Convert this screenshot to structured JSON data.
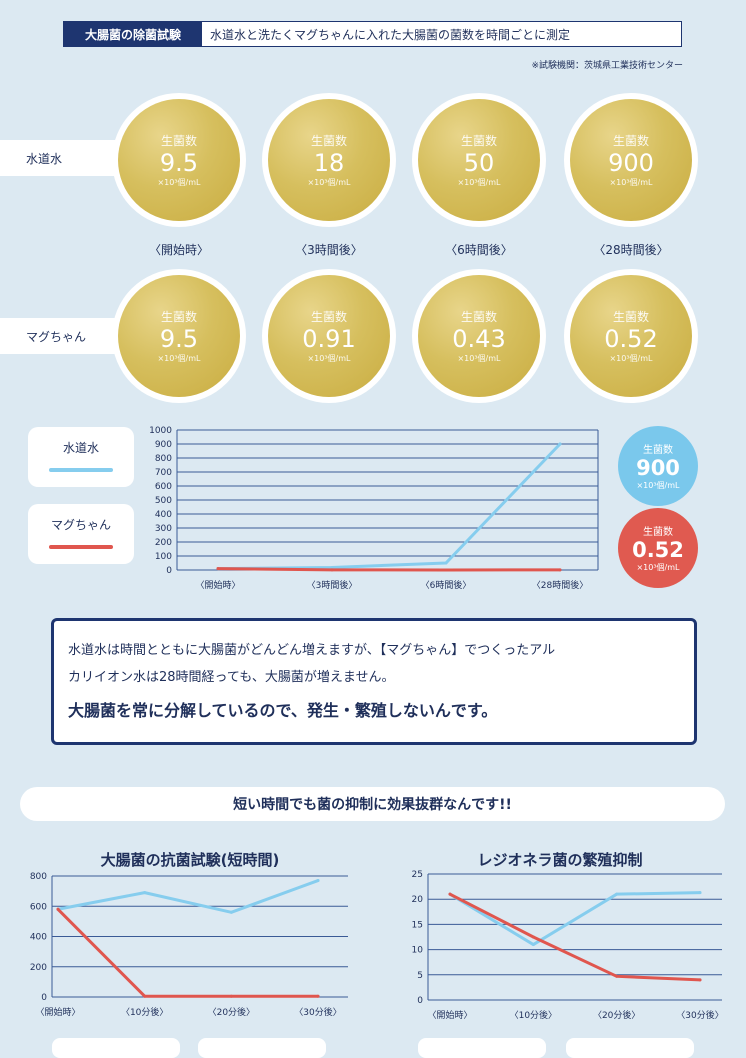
{
  "header": {
    "tag": "大腸菌の除菌試験",
    "title": "水道水と洗たくマグちゃんに入れた大腸菌の菌数を時間ごとに測定",
    "note": "※試験機関：茨城県工業技術センター"
  },
  "circles": {
    "count_label": "生菌数",
    "unit": "×10³個/mL",
    "rows": [
      {
        "label": "水道水",
        "values": [
          "9.5",
          "18",
          "50",
          "900"
        ]
      },
      {
        "label": "マグちゃん",
        "values": [
          "9.5",
          "0.91",
          "0.43",
          "0.52"
        ]
      }
    ],
    "times": [
      "〈開始時〉",
      "〈3時間後〉",
      "〈6時間後〉",
      "〈28時間後〉"
    ]
  },
  "legend": {
    "tap_water": "水道水",
    "maguchan": "マグちゃん"
  },
  "badges": [
    {
      "label": "生菌数",
      "value": "900",
      "unit": "×10³個/mL",
      "color": "#7ac8ec"
    },
    {
      "label": "生菌数",
      "value": "0.52",
      "unit": "×10³個/mL",
      "color": "#e05a50"
    }
  ],
  "colors": {
    "tap_water": "#86cdee",
    "maguchan": "#e0564e",
    "navy": "#1e3570",
    "grid": "#3a5a96",
    "background": "#dce9f2",
    "circle_gold": "#d6bf5e"
  },
  "textbox": {
    "line1": "水道水は時間とともに大腸菌がどんどん増えますが、【マグちゃん】でつくったアル",
    "line2": "カリイオン水は28時間経っても、大腸菌が増えません。",
    "emphasis": "大腸菌を常に分解しているので、発生・繁殖しないんです。"
  },
  "banner": "短い時間でも菌の抑制に効果抜群なんです!!",
  "chart_data": [
    {
      "type": "line",
      "title": "",
      "categories": [
        "〈開始時〉",
        "〈3時間後〉",
        "〈6時間後〉",
        "〈28時間後〉"
      ],
      "series": [
        {
          "name": "水道水",
          "values": [
            9.5,
            18,
            50,
            900
          ],
          "color": "#86cdee"
        },
        {
          "name": "マグちゃん",
          "values": [
            9.5,
            0.91,
            0.43,
            0.52
          ],
          "color": "#e0564e"
        }
      ],
      "yticks": [
        0,
        100,
        200,
        300,
        400,
        500,
        600,
        700,
        800,
        900,
        1000
      ],
      "ylim": [
        0,
        1000
      ],
      "grid": true
    },
    {
      "type": "line",
      "title": "大腸菌の抗菌試験(短時間)",
      "categories": [
        "〈開始時〉",
        "〈10分後〉",
        "〈20分後〉",
        "〈30分後〉"
      ],
      "series": [
        {
          "values": [
            580,
            690,
            560,
            770
          ],
          "color": "#86cdee"
        },
        {
          "values": [
            580,
            5,
            5,
            5
          ],
          "color": "#e0564e"
        }
      ],
      "yticks": [
        0,
        200,
        400,
        600,
        800
      ],
      "ylim": [
        0,
        800
      ],
      "grid": true
    },
    {
      "type": "line",
      "title": "レジオネラ菌の繁殖抑制",
      "categories": [
        "〈開始時〉",
        "〈10分後〉",
        "〈20分後〉",
        "〈30分後〉"
      ],
      "series": [
        {
          "values": [
            21,
            11,
            21,
            21.3
          ],
          "color": "#86cdee"
        },
        {
          "values": [
            21,
            12.5,
            4.7,
            4
          ],
          "color": "#e0564e"
        }
      ],
      "yticks": [
        0,
        5,
        10,
        15,
        20,
        25
      ],
      "ylim": [
        0,
        25
      ],
      "grid": true
    }
  ]
}
